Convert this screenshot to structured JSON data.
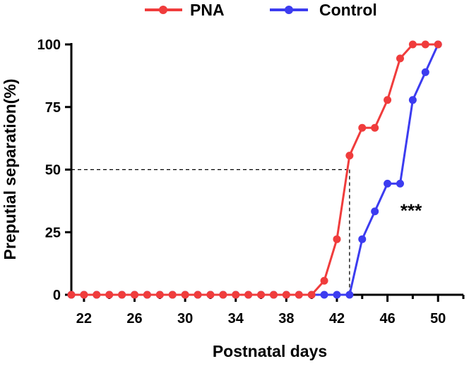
{
  "chart_data": {
    "type": "line",
    "title": "",
    "xlabel": "Postnatal days",
    "ylabel": "Preputial separation(%)",
    "xlim": [
      21,
      52
    ],
    "ylim": [
      0,
      100
    ],
    "xticks": [
      22,
      26,
      30,
      34,
      38,
      42,
      46,
      50
    ],
    "yticks": [
      0,
      25,
      50,
      75,
      100
    ],
    "series": [
      {
        "name": "PNA",
        "color": "#f03c3c",
        "x": [
          21,
          22,
          23,
          24,
          25,
          26,
          27,
          28,
          29,
          30,
          31,
          32,
          33,
          34,
          35,
          36,
          37,
          38,
          39,
          40,
          41,
          42,
          43,
          44,
          45,
          46,
          47,
          48,
          49,
          50
        ],
        "y": [
          0,
          0,
          0,
          0,
          0,
          0,
          0,
          0,
          0,
          0,
          0,
          0,
          0,
          0,
          0,
          0,
          0,
          0,
          0,
          0,
          5.6,
          22.2,
          55.6,
          66.7,
          66.7,
          77.8,
          94.4,
          100,
          100,
          100
        ]
      },
      {
        "name": "Control",
        "color": "#3c3cf0",
        "x": [
          21,
          22,
          23,
          24,
          25,
          26,
          27,
          28,
          29,
          30,
          31,
          32,
          33,
          34,
          35,
          36,
          37,
          38,
          39,
          40,
          41,
          42,
          43,
          44,
          45,
          46,
          47,
          48,
          49,
          50
        ],
        "y": [
          0,
          0,
          0,
          0,
          0,
          0,
          0,
          0,
          0,
          0,
          0,
          0,
          0,
          0,
          0,
          0,
          0,
          0,
          0,
          0,
          0,
          0,
          0,
          22.2,
          33.3,
          44.4,
          44.4,
          77.8,
          88.9,
          100
        ]
      }
    ],
    "reference_lines": {
      "y": 50,
      "x": 43,
      "style": "dashed"
    },
    "annotations": [
      {
        "text": "***",
        "x": 47.3,
        "y": 34
      }
    ],
    "legend": {
      "position": "top",
      "entries": [
        "PNA",
        "Control"
      ]
    }
  }
}
